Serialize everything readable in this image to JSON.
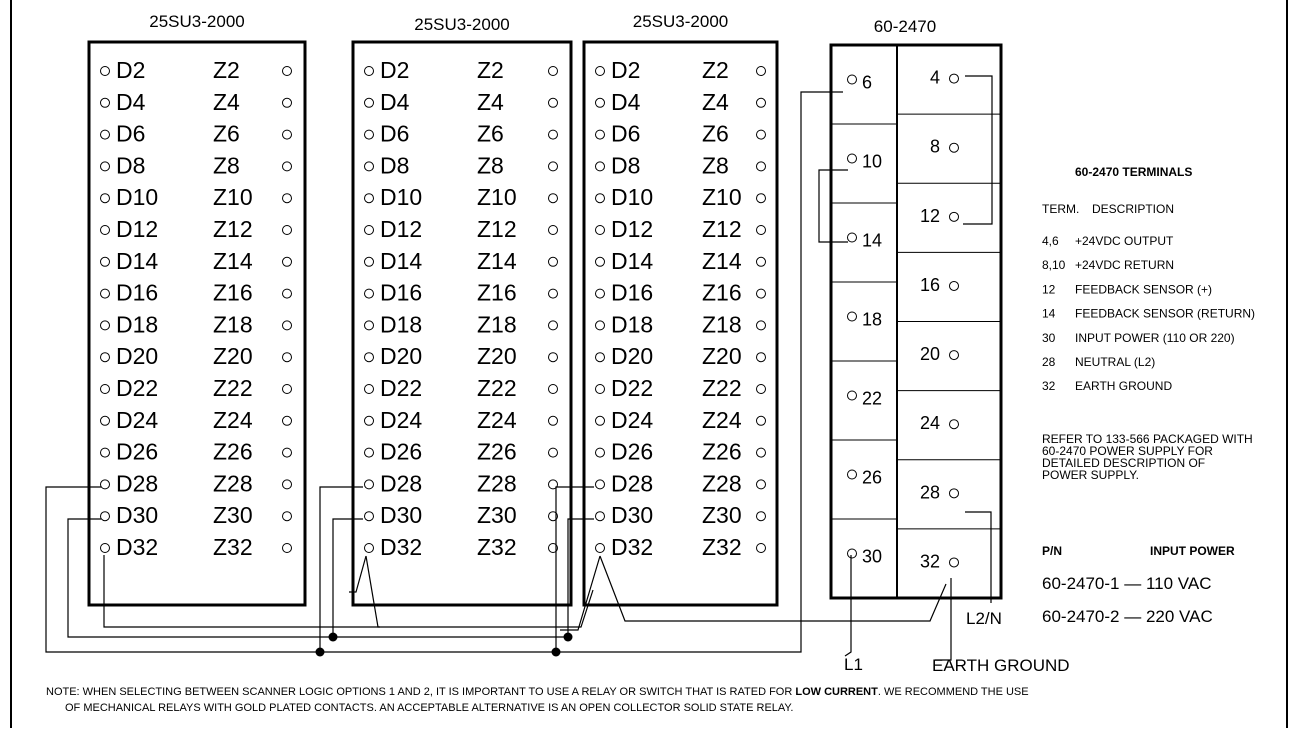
{
  "modules": [
    {
      "title": "25SU3-2000"
    },
    {
      "title": "25SU3-2000"
    },
    {
      "title": "25SU3-2000"
    }
  ],
  "d_terminals": [
    "D2",
    "D4",
    "D6",
    "D8",
    "D10",
    "D12",
    "D14",
    "D16",
    "D18",
    "D20",
    "D22",
    "D24",
    "D26",
    "D28",
    "D30",
    "D32"
  ],
  "z_terminals": [
    "Z2",
    "Z4",
    "Z6",
    "Z8",
    "Z10",
    "Z12",
    "Z14",
    "Z16",
    "Z18",
    "Z20",
    "Z22",
    "Z24",
    "Z26",
    "Z28",
    "Z30",
    "Z32"
  ],
  "power_supply": {
    "title": "60-2470",
    "left_terminals": [
      "6",
      "10",
      "14",
      "18",
      "22",
      "26",
      "30"
    ],
    "right_terminals": [
      "4",
      "8",
      "12",
      "16",
      "20",
      "24",
      "28",
      "32"
    ]
  },
  "wire_labels": {
    "l1": "L1",
    "l2n": "L2/N",
    "earth": "EARTH GROUND"
  },
  "terminal_table": {
    "title": "60-2470 TERMINALS",
    "col_term": "TERM.",
    "col_desc": "DESCRIPTION",
    "rows": [
      {
        "term": "4,6",
        "desc": "+24VDC OUTPUT"
      },
      {
        "term": "8,10",
        "desc": "+24VDC RETURN"
      },
      {
        "term": "12",
        "desc": "FEEDBACK SENSOR (+)"
      },
      {
        "term": "14",
        "desc": "FEEDBACK SENSOR (RETURN)"
      },
      {
        "term": "30",
        "desc": "INPUT POWER (110 OR 220)"
      },
      {
        "term": "28",
        "desc": "NEUTRAL (L2)"
      },
      {
        "term": "32",
        "desc": "EARTH GROUND"
      }
    ],
    "refer_lines": [
      "REFER TO 133-566 PACKAGED WITH",
      "60-2470 POWER SUPPLY FOR",
      "DETAILED DESCRIPTION OF",
      "POWER SUPPLY."
    ]
  },
  "pn_table": {
    "col_pn": "P/N",
    "col_power": "INPUT POWER",
    "rows": [
      "60-2470-1 — 110 VAC",
      "60-2470-2 — 220 VAC"
    ]
  },
  "note": {
    "line1_a": "NOTE: WHEN SELECTING BETWEEN SCANNER LOGIC OPTIONS 1 AND 2, IT IS IMPORTANT TO USE A RELAY OR SWITCH THAT IS RATED FOR ",
    "line1_bold": "LOW CURRENT",
    "line1_b": ". WE RECOMMEND THE USE",
    "line2": "OF MECHANICAL RELAYS WITH GOLD PLATED CONTACTS. AN ACCEPTABLE ALTERNATIVE IS AN OPEN COLLECTOR SOLID STATE RELAY."
  }
}
